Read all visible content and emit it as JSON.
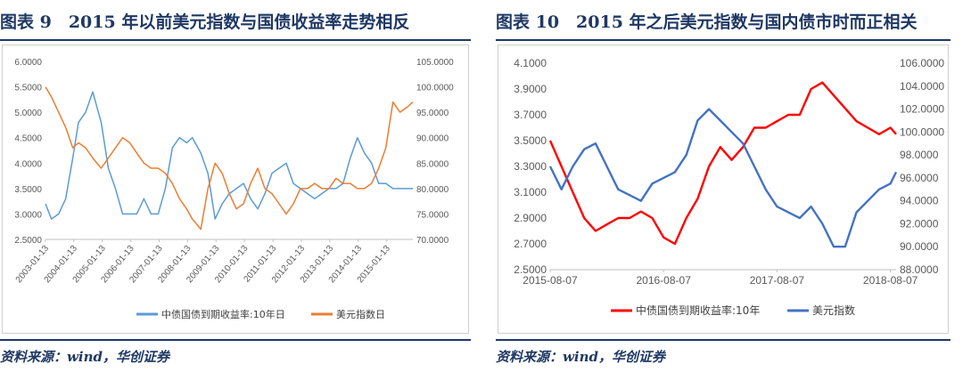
{
  "left": {
    "title": "图表 9　2015 年以前美元指数与国债收益率走势相反",
    "source": "资料来源：wind，华创证券",
    "chart_data": {
      "type": "line",
      "x_ticks": [
        "2003-01-13",
        "2004-01-13",
        "2005-01-13",
        "2006-01-13",
        "2007-01-13",
        "2008-01-13",
        "2009-01-13",
        "2010-01-13",
        "2011-01-13",
        "2012-01-13",
        "2013-01-13",
        "2014-01-13",
        "2015-01-13"
      ],
      "y_left_ticks": [
        "2.5000",
        "3.0000",
        "3.5000",
        "4.0000",
        "4.5000",
        "5.0000",
        "5.5000",
        "6.0000"
      ],
      "y_right_ticks": [
        "70.0000",
        "75.0000",
        "80.0000",
        "85.0000",
        "90.0000",
        "95.0000",
        "100.0000",
        "105.0000"
      ],
      "ylim_left": [
        2.5,
        6.0
      ],
      "ylim_right": [
        70,
        105
      ],
      "xlim": [
        2003.04,
        2015.95
      ],
      "series": [
        {
          "name": "中债国债到期收益率:10年日",
          "axis": "left",
          "color": "#5b9bd5",
          "x": [
            2003.04,
            2003.25,
            2003.5,
            2003.75,
            2004.0,
            2004.2,
            2004.45,
            2004.7,
            2005.0,
            2005.25,
            2005.5,
            2005.75,
            2006.0,
            2006.25,
            2006.5,
            2006.75,
            2007.0,
            2007.25,
            2007.5,
            2007.75,
            2008.0,
            2008.2,
            2008.5,
            2008.75,
            2009.0,
            2009.25,
            2009.5,
            2009.75,
            2010.0,
            2010.25,
            2010.5,
            2010.75,
            2011.0,
            2011.25,
            2011.5,
            2011.75,
            2012.0,
            2012.25,
            2012.5,
            2012.75,
            2013.0,
            2013.25,
            2013.5,
            2013.75,
            2014.0,
            2014.25,
            2014.5,
            2014.75,
            2015.0,
            2015.25,
            2015.5,
            2015.75,
            2015.95
          ],
          "y": [
            3.2,
            2.9,
            3.0,
            3.3,
            4.1,
            4.8,
            5.0,
            5.4,
            4.8,
            3.9,
            3.5,
            3.0,
            3.0,
            3.0,
            3.3,
            3.0,
            3.0,
            3.5,
            4.3,
            4.5,
            4.4,
            4.5,
            4.2,
            3.8,
            2.9,
            3.2,
            3.4,
            3.5,
            3.6,
            3.3,
            3.1,
            3.4,
            3.8,
            3.9,
            4.0,
            3.6,
            3.5,
            3.4,
            3.3,
            3.4,
            3.5,
            3.5,
            3.6,
            4.1,
            4.5,
            4.2,
            4.0,
            3.6,
            3.6,
            3.5,
            3.5,
            3.5,
            3.5
          ]
        },
        {
          "name": "美元指数日",
          "axis": "right",
          "color": "#ed7d31",
          "x": [
            2003.04,
            2003.25,
            2003.5,
            2003.75,
            2004.0,
            2004.2,
            2004.45,
            2004.7,
            2005.0,
            2005.25,
            2005.5,
            2005.75,
            2006.0,
            2006.25,
            2006.5,
            2006.75,
            2007.0,
            2007.25,
            2007.5,
            2007.75,
            2008.0,
            2008.2,
            2008.5,
            2008.75,
            2009.0,
            2009.25,
            2009.5,
            2009.75,
            2010.0,
            2010.25,
            2010.5,
            2010.75,
            2011.0,
            2011.25,
            2011.5,
            2011.75,
            2012.0,
            2012.25,
            2012.5,
            2012.75,
            2013.0,
            2013.25,
            2013.5,
            2013.75,
            2014.0,
            2014.25,
            2014.5,
            2014.75,
            2015.0,
            2015.25,
            2015.5,
            2015.75,
            2015.95
          ],
          "y": [
            100,
            98,
            95,
            92,
            88,
            89,
            88,
            86,
            84,
            86,
            88,
            90,
            89,
            87,
            85,
            84,
            84,
            83,
            81,
            78,
            76,
            74,
            72,
            80,
            85,
            83,
            79,
            76,
            77,
            81,
            84,
            80,
            79,
            77,
            75,
            77,
            80,
            80,
            81,
            80,
            80,
            82,
            81,
            81,
            80,
            80,
            81,
            84,
            88,
            97,
            95,
            96,
            97
          ]
        }
      ],
      "legend": "bottom"
    }
  },
  "right": {
    "title": "图表 10　2015 年之后美元指数与国内债市时而正相关",
    "source": "资料来源：wind，华创证券",
    "chart_data": {
      "type": "line",
      "x_ticks": [
        "2015-08-07",
        "2016-08-07",
        "2017-08-07",
        "2018-08-07"
      ],
      "y_left_ticks": [
        "2.5000",
        "2.7000",
        "2.9000",
        "3.1000",
        "3.3000",
        "3.5000",
        "3.7000",
        "3.9000",
        "4.1000"
      ],
      "y_right_ticks": [
        "88.0000",
        "90.0000",
        "92.0000",
        "94.0000",
        "96.0000",
        "98.0000",
        "100.0000",
        "102.0000",
        "104.0000",
        "106.0000"
      ],
      "ylim_left": [
        2.5,
        4.1
      ],
      "ylim_right": [
        88,
        106
      ],
      "xlim": [
        2015.6,
        2018.65
      ],
      "series": [
        {
          "name": "中债国债到期收益率:10年",
          "axis": "left",
          "color": "#ff0000",
          "x": [
            2015.6,
            2015.7,
            2015.8,
            2015.9,
            2016.0,
            2016.1,
            2016.2,
            2016.3,
            2016.4,
            2016.5,
            2016.6,
            2016.7,
            2016.8,
            2016.9,
            2017.0,
            2017.1,
            2017.2,
            2017.3,
            2017.4,
            2017.5,
            2017.6,
            2017.7,
            2017.8,
            2017.9,
            2018.0,
            2018.1,
            2018.2,
            2018.3,
            2018.4,
            2018.5,
            2018.6,
            2018.65
          ],
          "y": [
            3.5,
            3.3,
            3.1,
            2.9,
            2.8,
            2.85,
            2.9,
            2.9,
            2.95,
            2.9,
            2.75,
            2.7,
            2.9,
            3.05,
            3.3,
            3.45,
            3.35,
            3.45,
            3.6,
            3.6,
            3.65,
            3.7,
            3.7,
            3.9,
            3.95,
            3.85,
            3.75,
            3.65,
            3.6,
            3.55,
            3.6,
            3.55
          ]
        },
        {
          "name": "美元指数",
          "axis": "right",
          "color": "#4472c4",
          "x": [
            2015.6,
            2015.7,
            2015.8,
            2015.9,
            2016.0,
            2016.1,
            2016.2,
            2016.3,
            2016.4,
            2016.5,
            2016.6,
            2016.7,
            2016.8,
            2016.9,
            2017.0,
            2017.1,
            2017.2,
            2017.3,
            2017.4,
            2017.5,
            2017.6,
            2017.7,
            2017.8,
            2017.9,
            2018.0,
            2018.1,
            2018.2,
            2018.3,
            2018.4,
            2018.5,
            2018.6,
            2018.65
          ],
          "y": [
            97,
            95,
            97,
            98.5,
            99,
            97,
            95,
            94.5,
            94,
            95.5,
            96,
            96.5,
            98,
            101,
            102,
            101,
            100,
            99,
            97,
            95,
            93.5,
            93,
            92.5,
            93.5,
            92,
            90,
            90,
            93,
            94,
            95,
            95.5,
            96.5
          ]
        }
      ],
      "legend": "bottom"
    }
  }
}
